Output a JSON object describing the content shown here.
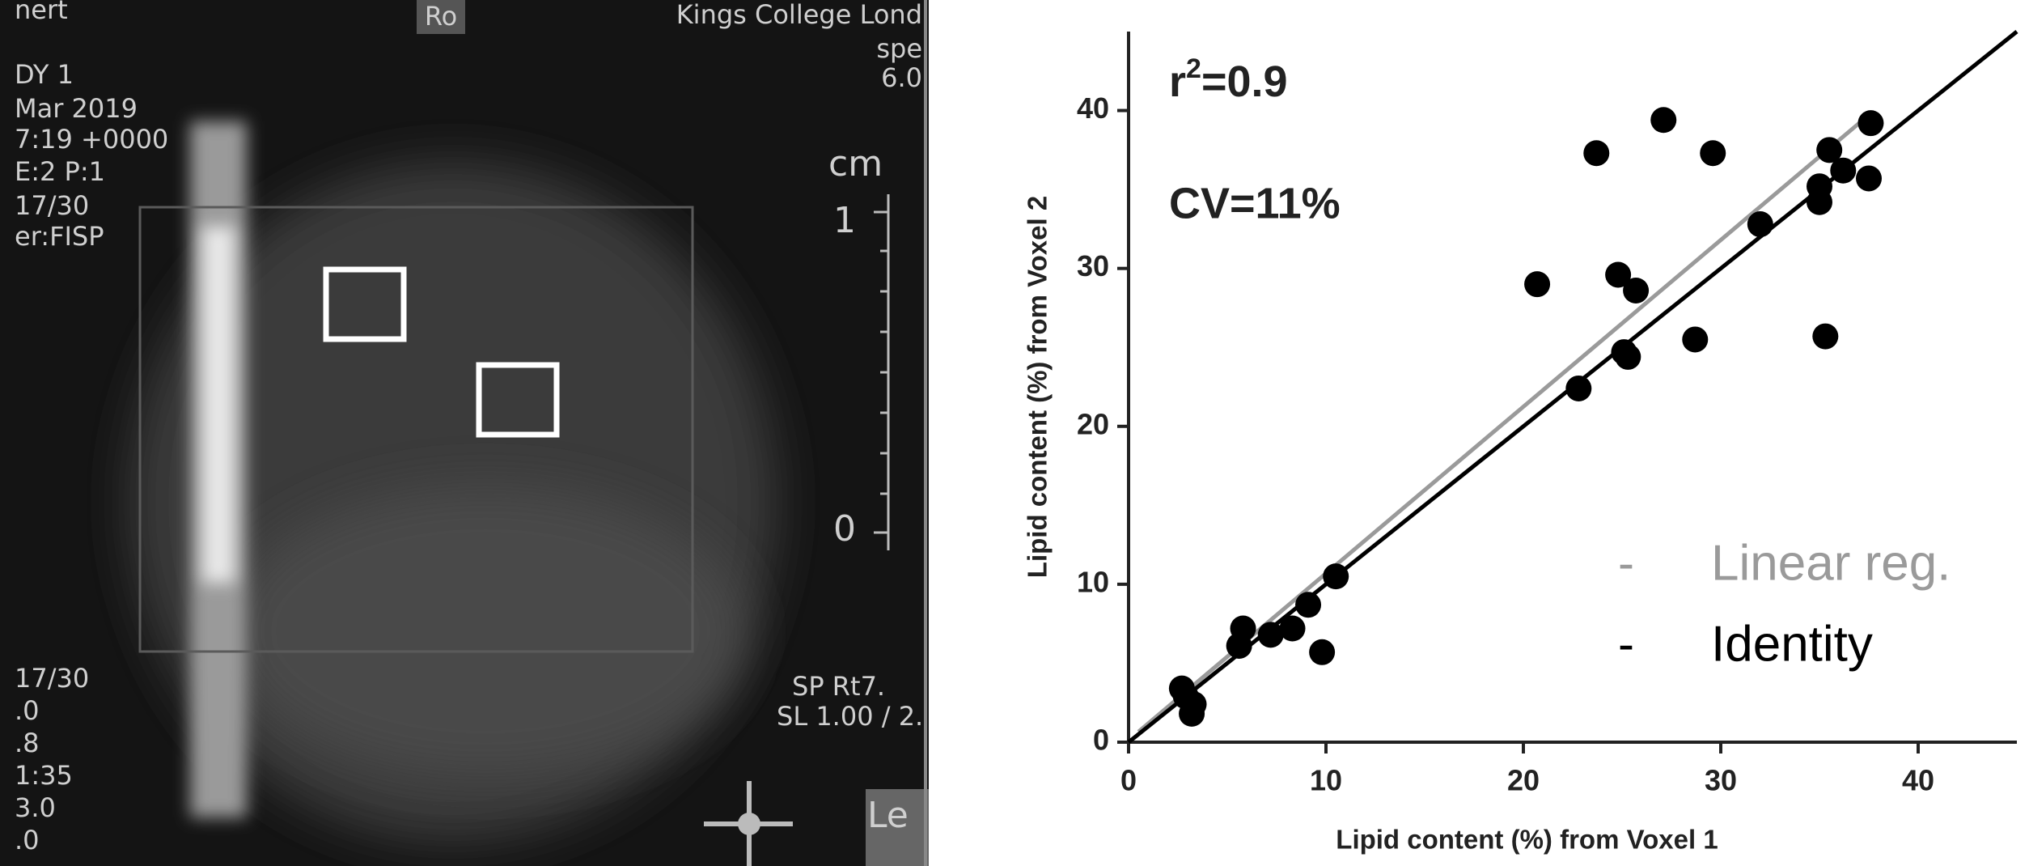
{
  "scan_overlay": {
    "texts": [
      "nert",
      "Ro",
      "Kings College Lond",
      "spe",
      "6.0",
      "DY 1",
      "Mar 2019",
      "7:19 +0000",
      "E:2 P:1",
      "17/30",
      "er:FISP",
      "cm",
      "1",
      "0",
      "17/30",
      ".0",
      ".8",
      "1:35",
      "3.0",
      ".0",
      "SP Rt7.",
      "SL 1.00 / 2.",
      "Le"
    ]
  },
  "chart_data": {
    "type": "scatter",
    "xlabel": "Lipid content (%) from Voxel 1",
    "ylabel": "Lipid content (%) from Voxel 2",
    "xlim": [
      0,
      45
    ],
    "ylim": [
      0,
      45
    ],
    "xticks": [
      0,
      10,
      20,
      30,
      40
    ],
    "yticks": [
      0,
      10,
      20,
      30,
      40
    ],
    "points": {
      "color": "#000000",
      "x": [
        2.7,
        2.9,
        3.3,
        3.2,
        5.6,
        5.8,
        7.2,
        8.3,
        9.1,
        10.5,
        9.8,
        20.7,
        22.8,
        23.7,
        24.8,
        25.7,
        25.1,
        25.3,
        27.1,
        28.7,
        29.6,
        32.0,
        35.0,
        35.0,
        35.5,
        35.3,
        36.2,
        37.6,
        37.5
      ],
      "y": [
        3.4,
        2.9,
        2.4,
        1.8,
        6.1,
        7.2,
        6.8,
        7.2,
        8.7,
        10.5,
        5.7,
        29.0,
        22.4,
        37.3,
        29.6,
        28.6,
        24.7,
        24.4,
        39.4,
        25.5,
        37.3,
        32.8,
        35.2,
        34.2,
        37.5,
        25.7,
        36.2,
        39.2,
        35.7
      ]
    },
    "lines": [
      {
        "name": "Linear reg.",
        "marker": "-",
        "color": "#9a9a9a",
        "x": [
          0.5,
          37.2
        ],
        "y": [
          0.66,
          39.4
        ]
      },
      {
        "name": "Identity",
        "marker": "-",
        "color": "#000000",
        "x": [
          0,
          45
        ],
        "y": [
          0,
          45
        ]
      }
    ],
    "annotations": {
      "r2": {
        "base": "r",
        "sup": "2",
        "rest": "=0.9"
      },
      "cv": "CV=11%"
    }
  }
}
